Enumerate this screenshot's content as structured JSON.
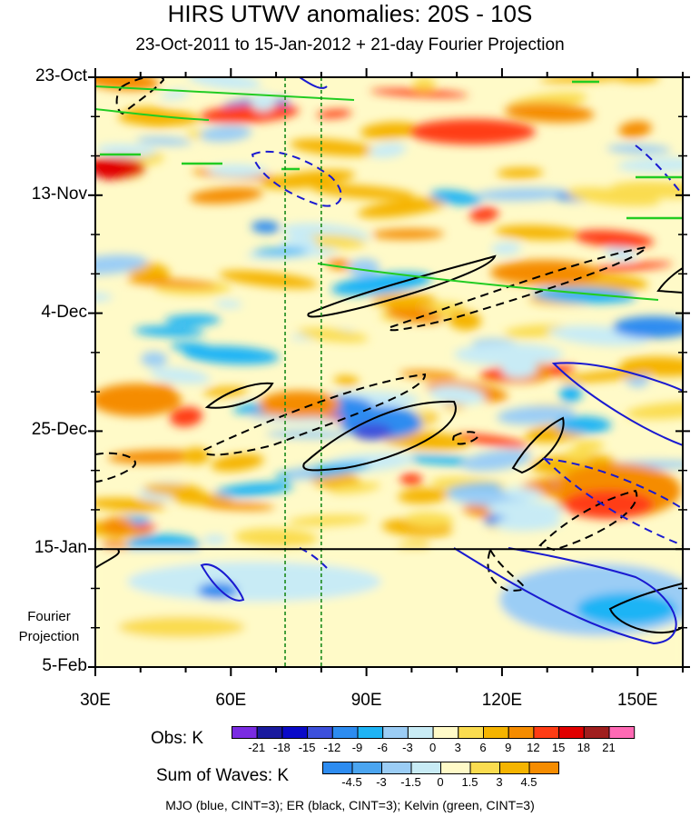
{
  "chart_data": {
    "type": "heatmap",
    "title": "HIRS UTWV anomalies: 20S - 10S",
    "subtitle": "23-Oct-2011 to 15-Jan-2012 + 21-day Fourier Projection",
    "x_ticks": [
      "30E",
      "60E",
      "90E",
      "120E",
      "150E"
    ],
    "x_range": [
      30,
      160
    ],
    "y_ticks": [
      "23-Oct",
      "13-Nov",
      "4-Dec",
      "25-Dec",
      "15-Jan",
      "5-Feb"
    ],
    "projection_label": "Fourier Projection",
    "obs_colorbar": {
      "label": "Obs: K",
      "levels": [
        "-21",
        "-18",
        "-15",
        "-12",
        "-9",
        "-6",
        "-3",
        "0",
        "3",
        "6",
        "9",
        "12",
        "15",
        "18",
        "21"
      ],
      "colors": [
        "#7a2be2",
        "#1a1a9e",
        "#0a0ac8",
        "#3c50dc",
        "#2d8cf0",
        "#1eb4f5",
        "#9bcdf5",
        "#c8ebf5",
        "#fffac8",
        "#fadc50",
        "#f5b400",
        "#f58c00",
        "#ff3c14",
        "#e10000",
        "#a01e1e",
        "#ff69b4"
      ]
    },
    "waves_colorbar": {
      "label": "Sum of Waves: K",
      "levels": [
        "-4.5",
        "-3",
        "-1.5",
        "0",
        "1.5",
        "3",
        "4.5"
      ],
      "colors": [
        "#2d8cf0",
        "#4ba5f0",
        "#9bcdf5",
        "#c8ebf5",
        "#fffac8",
        "#fadc50",
        "#f5b400",
        "#f58c00"
      ]
    },
    "footer": "MJO (blue, CINT=3); ER (black, CINT=3); Kelvin (green, CINT=3)",
    "reference_lines_lon": [
      72,
      80
    ],
    "projection_start": "15-Jan"
  }
}
